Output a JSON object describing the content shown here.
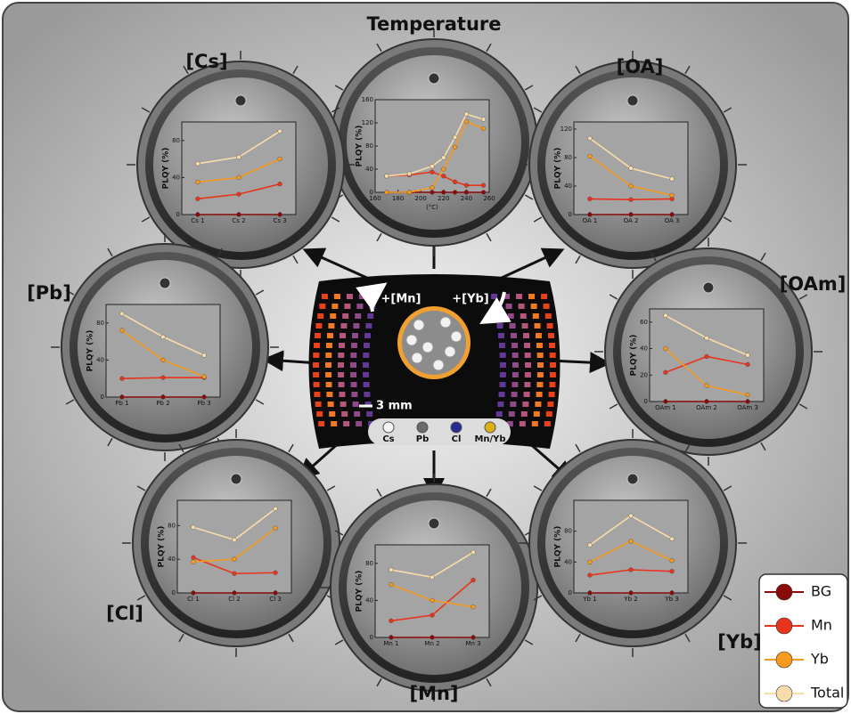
{
  "legend": {
    "series": [
      {
        "name": "BG",
        "color": "#8b0a0a"
      },
      {
        "name": "Mn",
        "color": "#e8341c"
      },
      {
        "name": "Yb",
        "color": "#f59a1f"
      },
      {
        "name": "Total",
        "color": "#f8dcaa"
      }
    ]
  },
  "sample": {
    "labels": [
      "+[Mn]",
      "+[Yb]"
    ],
    "scale_bar": "3 mm",
    "atoms": [
      {
        "name": "Cs",
        "color": "#f4f4f4"
      },
      {
        "name": "Pb",
        "color": "#6a6a6a"
      },
      {
        "name": "Cl",
        "color": "#2a2a90"
      },
      {
        "name": "Mn/Yb",
        "color": "#e0b010"
      }
    ]
  },
  "chart_data": [
    {
      "type": "line",
      "title": "Temperature",
      "y_label": "PLQY (%)",
      "x_label": "(°C)",
      "x": [
        170,
        190,
        210,
        220,
        230,
        240,
        255
      ],
      "xlim": [
        160,
        260
      ],
      "xticks": [
        160,
        180,
        200,
        220,
        240,
        260
      ],
      "ylim": [
        0,
        160
      ],
      "yticks": [
        0,
        40,
        80,
        120,
        160
      ],
      "series": [
        {
          "values": [
            0,
            0,
            0,
            0,
            0,
            0,
            0
          ]
        },
        {
          "values": [
            28,
            30,
            35,
            28,
            18,
            12,
            12
          ]
        },
        {
          "values": [
            0,
            0,
            8,
            40,
            78,
            122,
            110
          ]
        },
        {
          "values": [
            28,
            32,
            45,
            60,
            95,
            135,
            126
          ]
        }
      ]
    },
    {
      "type": "line",
      "title": "[Cs]",
      "y_label": "PLQY (%)",
      "categories": [
        "Cs 1",
        "Cs 2",
        "Cs 3"
      ],
      "ylim": [
        0,
        100
      ],
      "yticks": [
        0,
        40,
        80
      ],
      "series": [
        {
          "values": [
            0,
            0,
            0
          ]
        },
        {
          "values": [
            17,
            22,
            33
          ]
        },
        {
          "values": [
            35,
            40,
            60
          ]
        },
        {
          "values": [
            55,
            62,
            90
          ]
        }
      ]
    },
    {
      "type": "line",
      "title": "[OA]",
      "y_label": "PLQY (%)",
      "categories": [
        "OA 1",
        "OA 2",
        "OA 3"
      ],
      "ylim": [
        0,
        130
      ],
      "yticks": [
        0,
        40,
        80,
        120
      ],
      "series": [
        {
          "values": [
            0,
            0,
            0
          ]
        },
        {
          "values": [
            22,
            21,
            22
          ]
        },
        {
          "values": [
            82,
            40,
            27
          ]
        },
        {
          "values": [
            107,
            65,
            50
          ]
        }
      ]
    },
    {
      "type": "line",
      "title": "[Pb]",
      "y_label": "PLQY (%)",
      "categories": [
        "Pb 1",
        "Pb 2",
        "Pb 3"
      ],
      "ylim": [
        0,
        100
      ],
      "yticks": [
        0,
        40,
        80
      ],
      "series": [
        {
          "values": [
            0,
            0,
            0
          ]
        },
        {
          "values": [
            20,
            21,
            21
          ]
        },
        {
          "values": [
            72,
            40,
            22
          ]
        },
        {
          "values": [
            90,
            65,
            45
          ]
        }
      ]
    },
    {
      "type": "line",
      "title": "[OAm]",
      "y_label": "PLQY (%)",
      "categories": [
        "OAm 1",
        "OAm 2",
        "OAm 3"
      ],
      "ylim": [
        0,
        70
      ],
      "yticks": [
        0,
        20,
        40,
        60
      ],
      "series": [
        {
          "values": [
            0,
            0,
            0
          ]
        },
        {
          "values": [
            22,
            34,
            28
          ]
        },
        {
          "values": [
            40,
            12,
            5
          ]
        },
        {
          "values": [
            65,
            48,
            35
          ]
        }
      ]
    },
    {
      "type": "line",
      "title": "[Cl]",
      "y_label": "PLQY (%)",
      "categories": [
        "Cl 1",
        "Cl 2",
        "Cl 3"
      ],
      "ylim": [
        0,
        110
      ],
      "yticks": [
        0,
        40,
        80
      ],
      "series": [
        {
          "values": [
            0,
            0,
            0
          ]
        },
        {
          "values": [
            42,
            23,
            24
          ]
        },
        {
          "values": [
            37,
            40,
            77
          ]
        },
        {
          "values": [
            78,
            63,
            100
          ]
        }
      ]
    },
    {
      "type": "line",
      "title": "[Mn]",
      "y_label": "PLQY (%)",
      "categories": [
        "Mn 1",
        "Mn 2",
        "Mn 3"
      ],
      "ylim": [
        0,
        100
      ],
      "yticks": [
        0,
        40,
        80
      ],
      "series": [
        {
          "values": [
            0,
            0,
            0
          ]
        },
        {
          "values": [
            18,
            24,
            62
          ]
        },
        {
          "values": [
            57,
            40,
            33
          ]
        },
        {
          "values": [
            73,
            65,
            92
          ]
        }
      ]
    },
    {
      "type": "line",
      "title": "[Yb]",
      "y_label": "PLQY (%)",
      "categories": [
        "Yb 1",
        "Yb 2",
        "Yb 3"
      ],
      "ylim": [
        0,
        120
      ],
      "yticks": [
        0,
        40,
        80
      ],
      "series": [
        {
          "values": [
            0,
            0,
            0
          ]
        },
        {
          "values": [
            23,
            30,
            28
          ]
        },
        {
          "values": [
            40,
            67,
            42
          ]
        },
        {
          "values": [
            62,
            100,
            70
          ]
        }
      ]
    }
  ]
}
